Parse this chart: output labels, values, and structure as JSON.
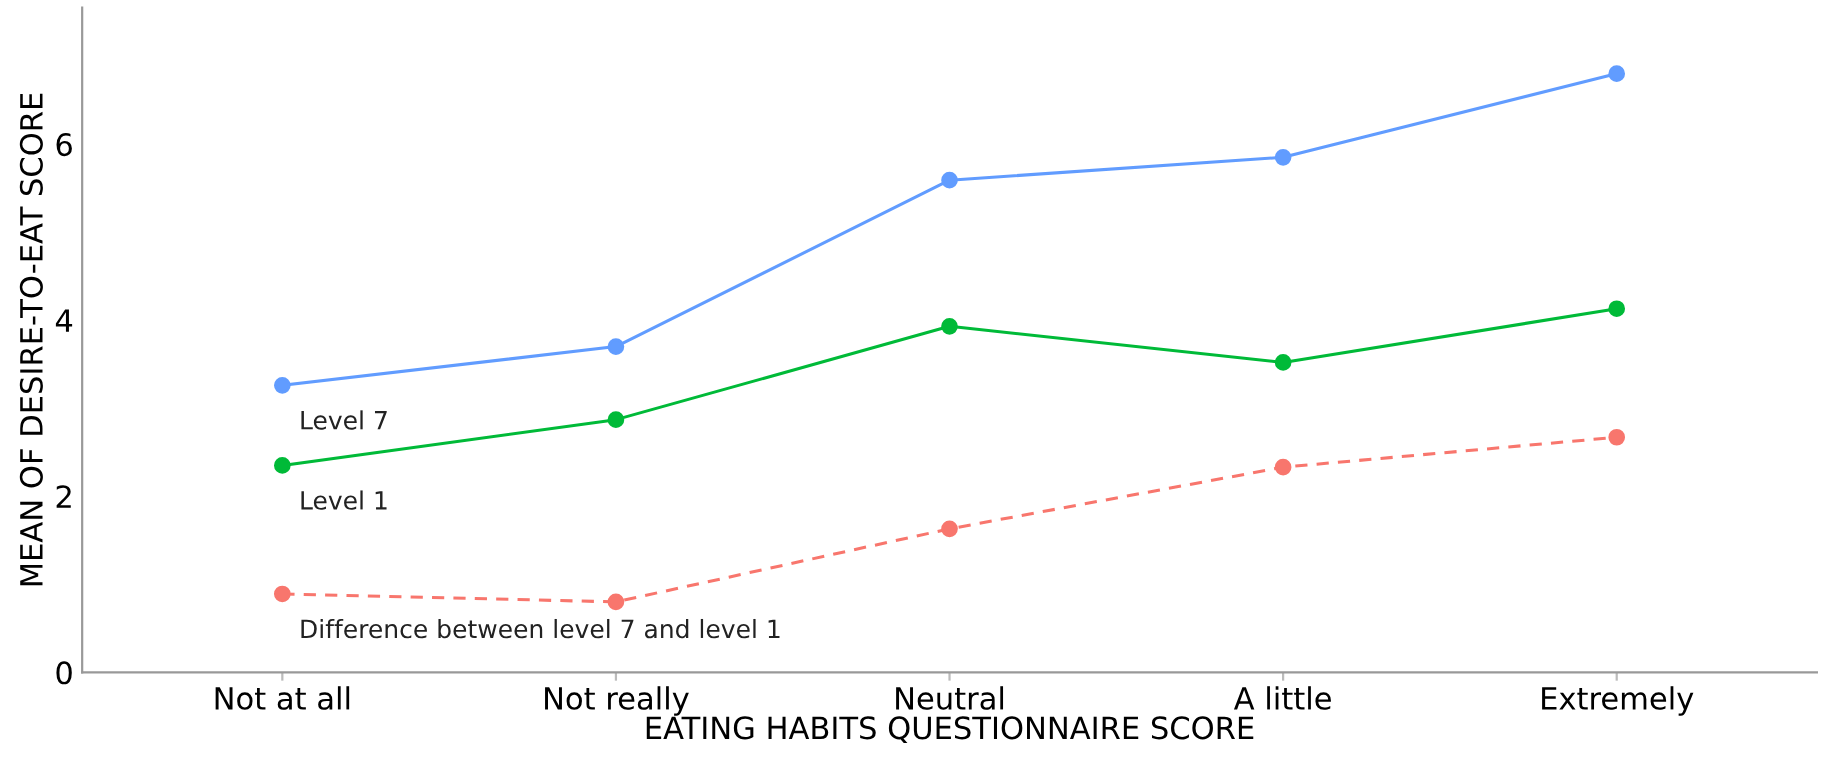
{
  "chart_data": {
    "type": "line",
    "xlabel": "EATING HABITS QUESTIONNAIRE SCORE",
    "ylabel": "MEAN OF DESIRE-TO-EAT SCORE",
    "categories": [
      "Not at all",
      "Not really",
      "Neutral",
      "A little",
      "Extremely"
    ],
    "series": [
      {
        "name": "Level 7",
        "color": "#619cff",
        "values": [
          3.26,
          3.7,
          5.59,
          5.85,
          6.8
        ],
        "line_style": "solid"
      },
      {
        "name": "Level 1",
        "color": "#00ba38",
        "values": [
          2.35,
          2.87,
          3.93,
          3.52,
          4.13
        ],
        "line_style": "solid"
      },
      {
        "name": "Difference between level 7 and level 1",
        "color": "#f8766d",
        "values": [
          0.89,
          0.8,
          1.63,
          2.33,
          2.67
        ],
        "line_style": "dashed"
      }
    ],
    "ylim": [
      0,
      7.55
    ],
    "yticks": [
      0,
      2,
      4,
      6
    ],
    "marker": "circle",
    "grid": false,
    "legend": false
  }
}
